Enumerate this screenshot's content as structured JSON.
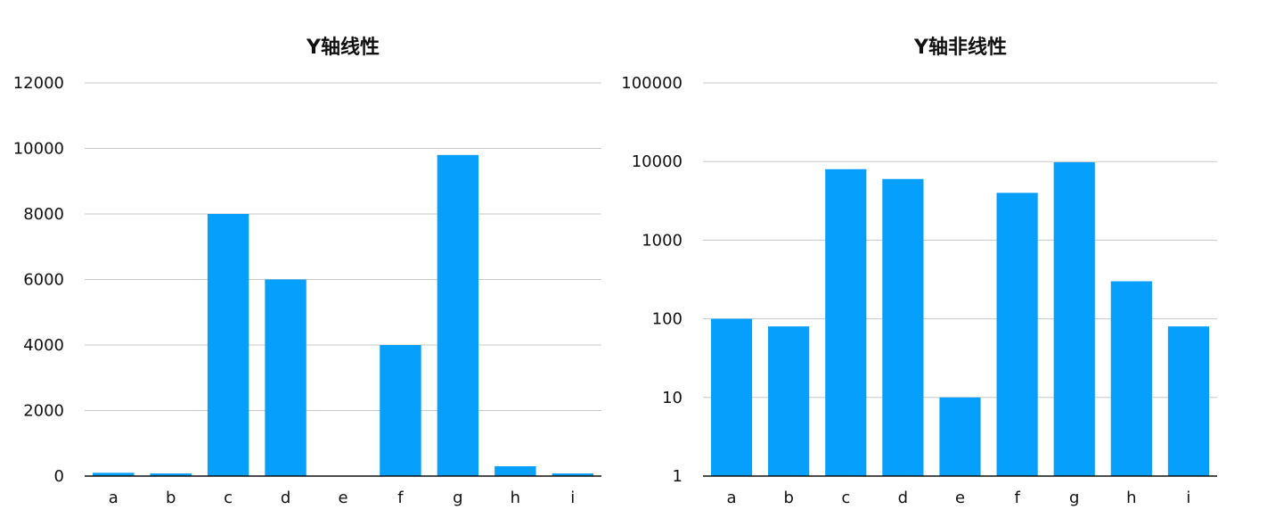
{
  "chart_data": [
    {
      "type": "bar",
      "title": "Y轴线性",
      "scale": "linear",
      "categories": [
        "a",
        "b",
        "c",
        "d",
        "e",
        "f",
        "g",
        "h",
        "i"
      ],
      "values": [
        100,
        80,
        8000,
        6000,
        10,
        4000,
        9800,
        300,
        80
      ],
      "ylim": [
        0,
        12000
      ],
      "yticks": [
        "0",
        "2000",
        "4000",
        "6000",
        "8000",
        "10000",
        "12000"
      ],
      "grid": true,
      "bar_color": "#069ffb"
    },
    {
      "type": "bar",
      "title": "Y轴非线性",
      "scale": "log",
      "categories": [
        "a",
        "b",
        "c",
        "d",
        "e",
        "f",
        "g",
        "h",
        "i"
      ],
      "values": [
        100,
        80,
        8000,
        6000,
        10,
        4000,
        9800,
        300,
        80
      ],
      "ylim": [
        1,
        100000
      ],
      "yticks": [
        "1",
        "10",
        "100",
        "1000",
        "10000",
        "100000"
      ],
      "grid": true,
      "bar_color": "#069ffb"
    }
  ]
}
